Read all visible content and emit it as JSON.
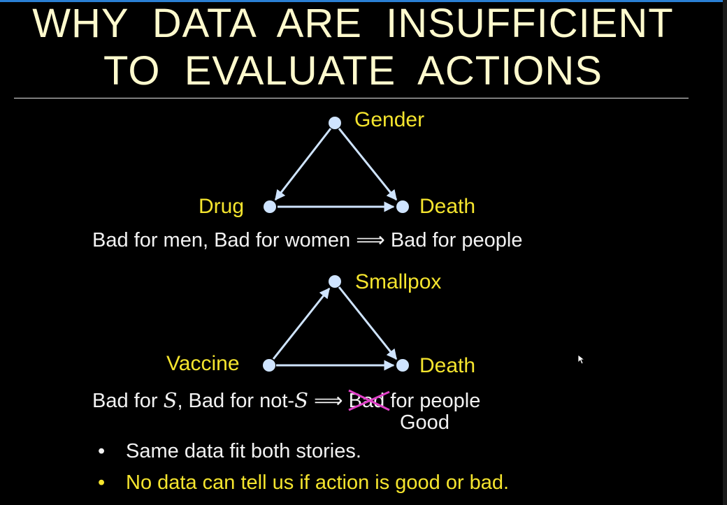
{
  "slide": {
    "title_lines": [
      "WHY  DATA  ARE  INSUFFICIENT",
      "TO  EVALUATE  ACTIONS"
    ]
  },
  "diagram1": {
    "nodes": {
      "top": "Gender",
      "left": "Drug",
      "right": "Death"
    },
    "caption": {
      "part1": "Bad for men, Bad for women",
      "arrow": "⟹",
      "part2": "Bad for people"
    }
  },
  "diagram2": {
    "nodes": {
      "top": "Smallpox",
      "left": "Vaccine",
      "right": "Death"
    },
    "caption": {
      "pre": "Bad for ",
      "var1": "S",
      "mid": ", Bad for not-",
      "var2": "S",
      "arrow": "⟹",
      "crossed_word": "Bad",
      "post": " for people",
      "replacement": "Good"
    }
  },
  "bullets": [
    {
      "marker": "•",
      "text": "Same data fit both stories."
    },
    {
      "marker": "•",
      "text": "No data can tell us if action is good or bad."
    }
  ],
  "colors": {
    "title": "#fffacd",
    "node_label": "#f5e52e",
    "node": "#cfe4ff",
    "edge": "#cfe4ff",
    "strike": "#e040c8",
    "background": "#000000"
  },
  "icons": {
    "cursor": "mouse-pointer-icon"
  }
}
